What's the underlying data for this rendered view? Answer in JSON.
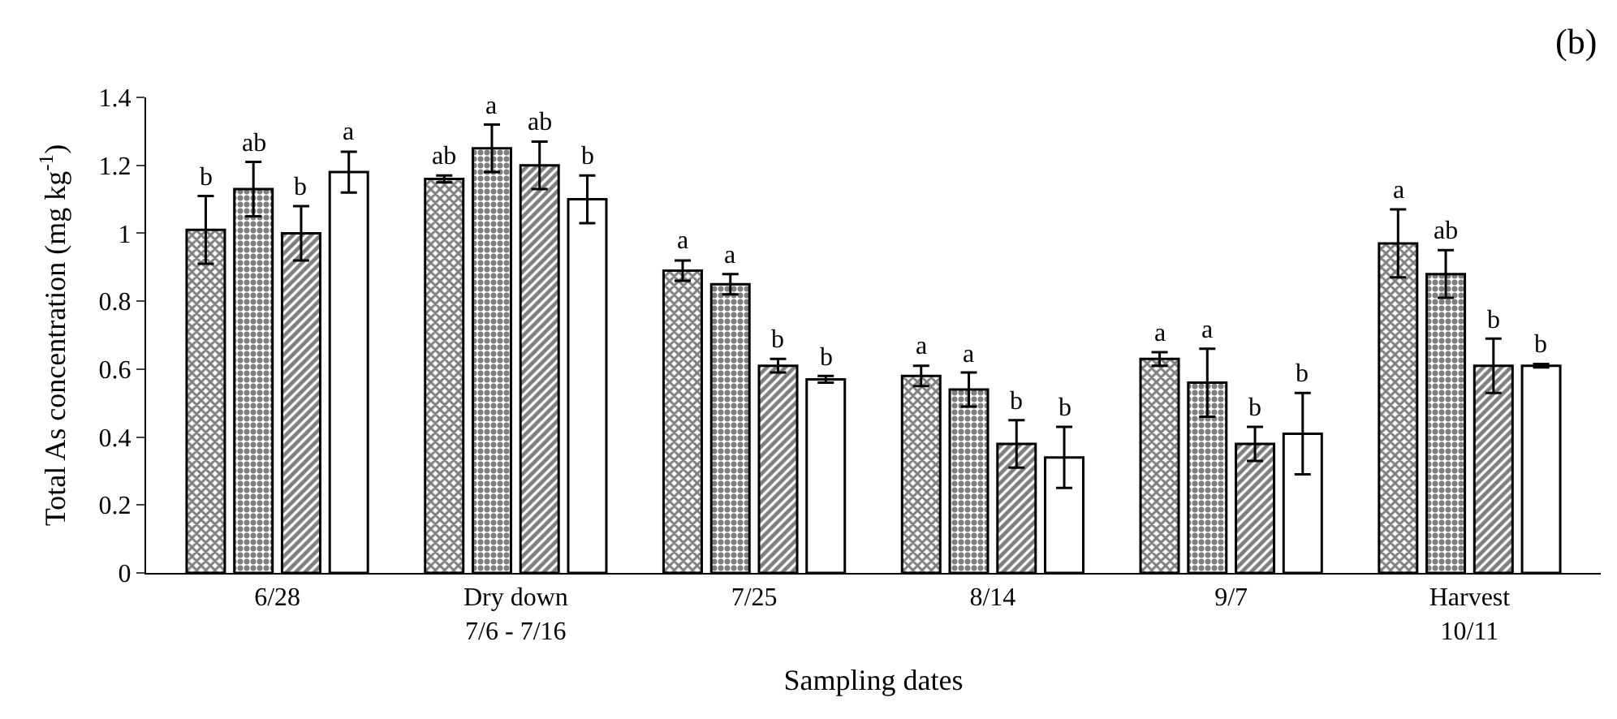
{
  "chart_data": {
    "type": "bar",
    "xlabel": "Sampling dates",
    "ylabel": "Total As concentration (mg kg$^{-1}$)",
    "annotations": [
      "(b)"
    ],
    "categories": [
      "6/28",
      "Dry down\n7/6 - 7/16",
      "7/25",
      "8/14",
      "9/7",
      "Harvest\n10/11"
    ],
    "ylim": [
      0,
      1.4
    ],
    "yticks": [
      0,
      0.2,
      0.4,
      0.6,
      0.8,
      1,
      1.2,
      1.4
    ],
    "series": [
      {
        "color": "#000000",
        "values": [
          1.01,
          1.16,
          0.89,
          0.58,
          0.63,
          0.97
        ],
        "errors": [
          0.1,
          0.01,
          0.03,
          0.03,
          0.02,
          0.1
        ],
        "value_labels": [
          "b",
          "ab",
          "a",
          "a",
          "a",
          "a"
        ]
      },
      {
        "color": "#000000",
        "values": [
          1.13,
          1.25,
          0.85,
          0.54,
          0.56,
          0.88
        ],
        "errors": [
          0.08,
          0.07,
          0.03,
          0.05,
          0.1,
          0.07
        ],
        "value_labels": [
          "ab",
          "a",
          "a",
          "a",
          "a",
          "ab"
        ]
      },
      {
        "color": "#000000",
        "values": [
          1.0,
          1.2,
          0.61,
          0.38,
          0.38,
          0.61
        ],
        "errors": [
          0.08,
          0.07,
          0.02,
          0.07,
          0.05,
          0.08
        ],
        "value_labels": [
          "b",
          "ab",
          "b",
          "b",
          "b",
          "b"
        ]
      },
      {
        "color": "#ffffff",
        "values": [
          1.18,
          1.1,
          0.57,
          0.34,
          0.41,
          0.61
        ],
        "errors": [
          0.06,
          0.07,
          0.01,
          0.09,
          0.12,
          0.005
        ],
        "value_labels": [
          "a",
          "b",
          "b",
          "b",
          "b",
          "b"
        ]
      }
    ]
  }
}
